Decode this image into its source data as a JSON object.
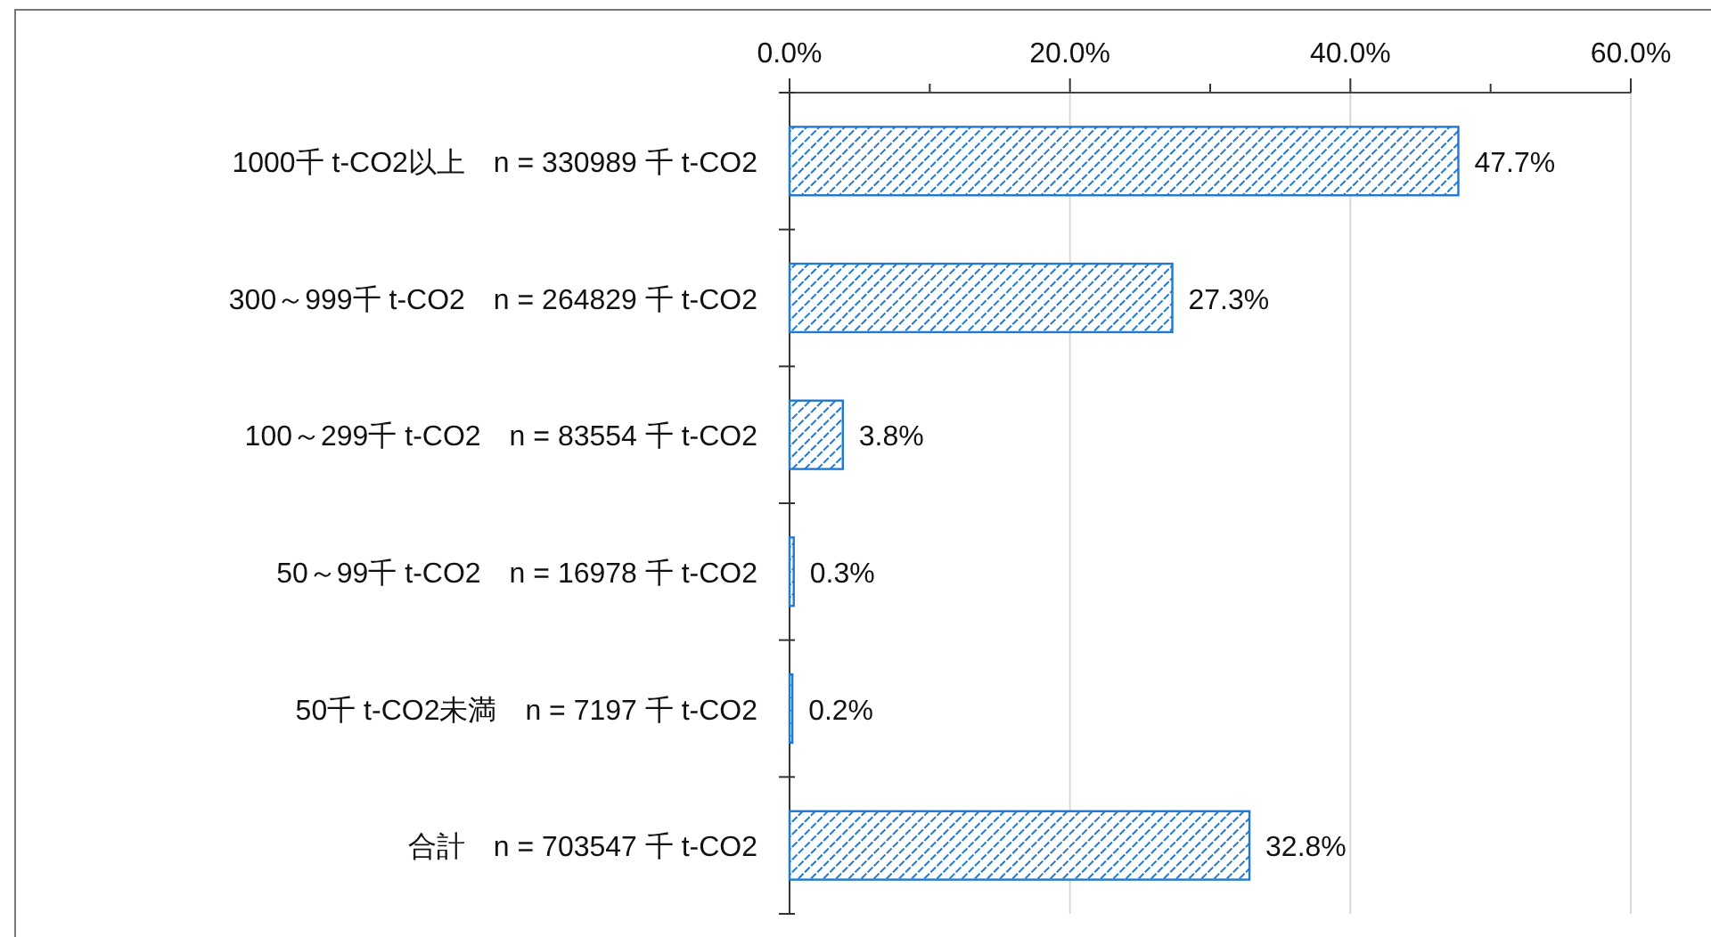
{
  "chart_data": {
    "type": "bar",
    "orientation": "horizontal",
    "categories": [
      "1000千 t-CO2以上　n = 330989  千 t-CO2",
      "300～999千 t-CO2　n = 264829  千 t-CO2",
      "100～299千 t-CO2　n = 83554  千 t-CO2",
      "50～99千 t-CO2　n = 16978  千 t-CO2",
      "50千 t-CO2未満　n = 7197  千 t-CO2",
      "合計　n = 703547  千 t-CO2"
    ],
    "values": [
      47.7,
      27.3,
      3.8,
      0.3,
      0.2,
      32.8
    ],
    "value_labels": [
      "47.7%",
      "27.3%",
      "3.8%",
      "0.3%",
      "0.2%",
      "32.8%"
    ],
    "color": "#1f78d1",
    "xlim": [
      0,
      60
    ],
    "xticks": [
      {
        "value": 0,
        "label": "0.0%"
      },
      {
        "value": 10,
        "label": null
      },
      {
        "value": 20,
        "label": "20.0%"
      },
      {
        "value": 30,
        "label": null
      },
      {
        "value": 40,
        "label": "40.0%"
      },
      {
        "value": 50,
        "label": null
      },
      {
        "value": 60,
        "label": "60.0%"
      }
    ],
    "grid": "x"
  }
}
